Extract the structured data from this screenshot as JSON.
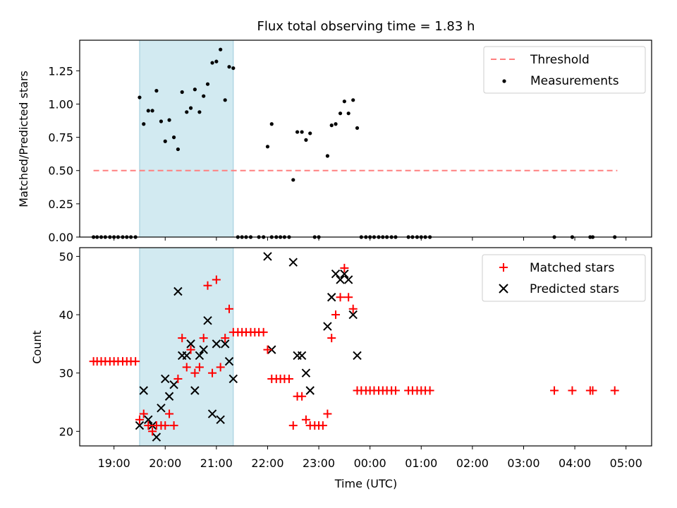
{
  "chart_data": [
    {
      "type": "scatter",
      "title": "Flux total observing time = 1.83 h",
      "ylabel": "Matched/Predicted stars",
      "xlabel": "",
      "xlim": [
        18.33,
        29.5
      ],
      "ylim": [
        0,
        1.48
      ],
      "yticks": [
        0.0,
        0.25,
        0.5,
        0.75,
        1.0,
        1.25
      ],
      "ytick_labels": [
        "0.00",
        "0.25",
        "0.50",
        "0.75",
        "1.00",
        "1.25"
      ],
      "shaded_span": [
        19.5,
        21.33
      ],
      "threshold": {
        "name": "Threshold",
        "y": 0.5,
        "x_range": [
          18.6,
          28.83
        ],
        "color": "#ff7f7f"
      },
      "legend": {
        "position": "top-right",
        "entries": [
          "Threshold",
          "Measurements"
        ]
      },
      "series": [
        {
          "name": "Measurements",
          "color": "#000000",
          "points": [
            [
              18.6,
              0
            ],
            [
              18.67,
              0
            ],
            [
              18.75,
              0
            ],
            [
              18.83,
              0
            ],
            [
              18.92,
              0
            ],
            [
              19.0,
              0
            ],
            [
              19.08,
              0
            ],
            [
              19.17,
              0
            ],
            [
              19.25,
              0
            ],
            [
              19.33,
              0
            ],
            [
              19.42,
              0
            ],
            [
              19.5,
              1.05
            ],
            [
              19.58,
              0.85
            ],
            [
              19.67,
              0.95
            ],
            [
              19.75,
              0.95
            ],
            [
              19.83,
              1.1
            ],
            [
              19.92,
              0.87
            ],
            [
              20.0,
              0.72
            ],
            [
              20.08,
              0.88
            ],
            [
              20.17,
              0.75
            ],
            [
              20.25,
              0.66
            ],
            [
              20.33,
              1.09
            ],
            [
              20.42,
              0.94
            ],
            [
              20.5,
              0.97
            ],
            [
              20.58,
              1.11
            ],
            [
              20.67,
              0.94
            ],
            [
              20.75,
              1.06
            ],
            [
              20.83,
              1.15
            ],
            [
              20.92,
              1.31
            ],
            [
              21.0,
              1.32
            ],
            [
              21.08,
              1.41
            ],
            [
              21.17,
              1.03
            ],
            [
              21.25,
              1.28
            ],
            [
              21.33,
              1.27
            ],
            [
              21.42,
              0
            ],
            [
              21.5,
              0
            ],
            [
              21.58,
              0
            ],
            [
              21.67,
              0
            ],
            [
              21.83,
              0
            ],
            [
              21.92,
              0
            ],
            [
              22.08,
              0
            ],
            [
              22.17,
              0
            ],
            [
              22.25,
              0
            ],
            [
              22.33,
              0
            ],
            [
              22.42,
              0
            ],
            [
              22.92,
              0
            ],
            [
              23.0,
              0
            ],
            [
              22.0,
              0.68
            ],
            [
              22.08,
              0.85
            ],
            [
              22.5,
              0.43
            ],
            [
              22.58,
              0.79
            ],
            [
              22.67,
              0.79
            ],
            [
              22.75,
              0.73
            ],
            [
              22.83,
              0.78
            ],
            [
              23.17,
              0.61
            ],
            [
              23.25,
              0.84
            ],
            [
              23.33,
              0.85
            ],
            [
              23.42,
              0.93
            ],
            [
              23.5,
              1.02
            ],
            [
              23.58,
              0.93
            ],
            [
              23.67,
              1.03
            ],
            [
              23.75,
              0.82
            ],
            [
              23.83,
              0
            ],
            [
              23.92,
              0
            ],
            [
              24.0,
              0
            ],
            [
              24.08,
              0
            ],
            [
              24.17,
              0
            ],
            [
              24.25,
              0
            ],
            [
              24.33,
              0
            ],
            [
              24.42,
              0
            ],
            [
              24.5,
              0
            ],
            [
              24.75,
              0
            ],
            [
              24.83,
              0
            ],
            [
              24.92,
              0
            ],
            [
              25.0,
              0
            ],
            [
              25.08,
              0
            ],
            [
              25.17,
              0
            ],
            [
              27.6,
              0
            ],
            [
              27.95,
              0
            ],
            [
              28.3,
              0
            ],
            [
              28.35,
              0
            ],
            [
              28.78,
              0
            ]
          ]
        }
      ]
    },
    {
      "type": "scatter",
      "xlabel": "Time (UTC)",
      "ylabel": "Count",
      "xlim": [
        18.33,
        29.5
      ],
      "ylim": [
        17.5,
        51.5
      ],
      "yticks": [
        20,
        30,
        40,
        50
      ],
      "ytick_labels": [
        "20",
        "30",
        "40",
        "50"
      ],
      "xticks": [
        19,
        20,
        21,
        22,
        23,
        24,
        25,
        26,
        27,
        28,
        29
      ],
      "xtick_labels": [
        "19:00",
        "20:00",
        "21:00",
        "22:00",
        "23:00",
        "00:00",
        "01:00",
        "02:00",
        "03:00",
        "04:00",
        "05:00"
      ],
      "shaded_span": [
        19.5,
        21.33
      ],
      "legend": {
        "position": "top-right",
        "entries": [
          "Matched stars",
          "Predicted stars"
        ]
      },
      "series": [
        {
          "name": "Matched stars",
          "marker": "plus",
          "color": "#ff0000",
          "points": [
            [
              18.6,
              32
            ],
            [
              18.67,
              32
            ],
            [
              18.75,
              32
            ],
            [
              18.83,
              32
            ],
            [
              18.92,
              32
            ],
            [
              19.0,
              32
            ],
            [
              19.08,
              32
            ],
            [
              19.17,
              32
            ],
            [
              19.25,
              32
            ],
            [
              19.33,
              32
            ],
            [
              19.42,
              32
            ],
            [
              19.5,
              22
            ],
            [
              19.58,
              23
            ],
            [
              19.67,
              21
            ],
            [
              19.75,
              20
            ],
            [
              19.83,
              21
            ],
            [
              19.92,
              21
            ],
            [
              20.0,
              21
            ],
            [
              20.08,
              23
            ],
            [
              20.17,
              21
            ],
            [
              20.25,
              29
            ],
            [
              20.33,
              36
            ],
            [
              20.42,
              31
            ],
            [
              20.5,
              34
            ],
            [
              20.58,
              30
            ],
            [
              20.67,
              31
            ],
            [
              20.75,
              36
            ],
            [
              20.83,
              45
            ],
            [
              20.92,
              30
            ],
            [
              21.0,
              46
            ],
            [
              21.08,
              31
            ],
            [
              21.17,
              36
            ],
            [
              21.25,
              41
            ],
            [
              21.33,
              37
            ],
            [
              21.42,
              37
            ],
            [
              21.5,
              37
            ],
            [
              21.58,
              37
            ],
            [
              21.67,
              37
            ],
            [
              21.75,
              37
            ],
            [
              21.83,
              37
            ],
            [
              21.92,
              37
            ],
            [
              22.0,
              34
            ],
            [
              22.08,
              29
            ],
            [
              22.17,
              29
            ],
            [
              22.25,
              29
            ],
            [
              22.33,
              29
            ],
            [
              22.42,
              29
            ],
            [
              22.5,
              21
            ],
            [
              22.58,
              26
            ],
            [
              22.67,
              26
            ],
            [
              22.75,
              22
            ],
            [
              22.83,
              21
            ],
            [
              22.92,
              21
            ],
            [
              23.0,
              21
            ],
            [
              23.08,
              21
            ],
            [
              23.17,
              23
            ],
            [
              23.25,
              36
            ],
            [
              23.33,
              40
            ],
            [
              23.42,
              43
            ],
            [
              23.5,
              48
            ],
            [
              23.58,
              43
            ],
            [
              23.67,
              41
            ],
            [
              23.75,
              27
            ],
            [
              23.83,
              27
            ],
            [
              23.92,
              27
            ],
            [
              24.0,
              27
            ],
            [
              24.08,
              27
            ],
            [
              24.17,
              27
            ],
            [
              24.25,
              27
            ],
            [
              24.33,
              27
            ],
            [
              24.42,
              27
            ],
            [
              24.5,
              27
            ],
            [
              24.75,
              27
            ],
            [
              24.83,
              27
            ],
            [
              24.92,
              27
            ],
            [
              25.0,
              27
            ],
            [
              25.08,
              27
            ],
            [
              25.17,
              27
            ],
            [
              27.6,
              27
            ],
            [
              27.95,
              27
            ],
            [
              28.3,
              27
            ],
            [
              28.35,
              27
            ],
            [
              28.78,
              27
            ]
          ]
        },
        {
          "name": "Predicted stars",
          "marker": "x",
          "color": "#000000",
          "points": [
            [
              19.5,
              21
            ],
            [
              19.58,
              27
            ],
            [
              19.67,
              22
            ],
            [
              19.75,
              21
            ],
            [
              19.83,
              19
            ],
            [
              19.92,
              24
            ],
            [
              20.0,
              29
            ],
            [
              20.08,
              26
            ],
            [
              20.17,
              28
            ],
            [
              20.25,
              44
            ],
            [
              20.33,
              33
            ],
            [
              20.42,
              33
            ],
            [
              20.5,
              35
            ],
            [
              20.58,
              27
            ],
            [
              20.67,
              33
            ],
            [
              20.75,
              34
            ],
            [
              20.83,
              39
            ],
            [
              20.92,
              23
            ],
            [
              21.0,
              35
            ],
            [
              21.08,
              22
            ],
            [
              21.17,
              35
            ],
            [
              21.25,
              32
            ],
            [
              21.33,
              29
            ],
            [
              22.0,
              50
            ],
            [
              22.08,
              34
            ],
            [
              22.5,
              49
            ],
            [
              22.58,
              33
            ],
            [
              22.67,
              33
            ],
            [
              22.75,
              30
            ],
            [
              22.83,
              27
            ],
            [
              23.17,
              38
            ],
            [
              23.25,
              43
            ],
            [
              23.33,
              47
            ],
            [
              23.42,
              46
            ],
            [
              23.5,
              47
            ],
            [
              23.58,
              46
            ],
            [
              23.67,
              40
            ],
            [
              23.75,
              33
            ]
          ]
        }
      ]
    }
  ]
}
